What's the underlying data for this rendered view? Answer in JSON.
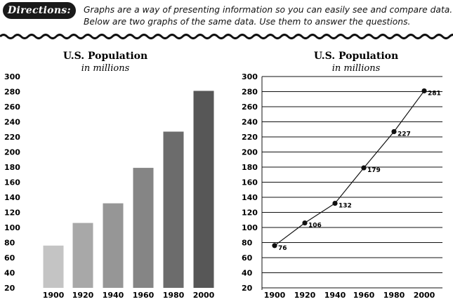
{
  "header": {
    "badge": "Directions:",
    "line1": "Graphs are a way of presenting information so you can easily see and compare data.",
    "line2": "Below are two graphs of the same data. Use them to answer the questions."
  },
  "chart_data": [
    {
      "type": "bar",
      "title": "U.S. Population",
      "subtitle": "in millions",
      "categories": [
        "1900",
        "1920",
        "1940",
        "1960",
        "1980",
        "2000"
      ],
      "values": [
        76,
        106,
        132,
        179,
        227,
        281
      ],
      "yticks": [
        "300",
        "280",
        "260",
        "240",
        "220",
        "200",
        "180",
        "160",
        "140",
        "120",
        "100",
        "80",
        "60",
        "40",
        "20"
      ],
      "ylim": [
        20,
        300
      ],
      "colors": [
        "#c4c4c4",
        "#a8a8a8",
        "#969696",
        "#858585",
        "#6c6c6c",
        "#575757"
      ],
      "grid": false
    },
    {
      "type": "line",
      "title": "U.S. Population",
      "subtitle": "in millions",
      "categories": [
        "1900",
        "1920",
        "1940",
        "1960",
        "1980",
        "2000"
      ],
      "values": [
        76,
        106,
        132,
        179,
        227,
        281
      ],
      "labels": [
        "76",
        "106",
        "132",
        "179",
        "227",
        "281"
      ],
      "yticks": [
        "300",
        "280",
        "260",
        "240",
        "220",
        "200",
        "180",
        "160",
        "140",
        "120",
        "100",
        "80",
        "60",
        "40",
        "20"
      ],
      "ylim": [
        20,
        300
      ],
      "grid": true
    }
  ]
}
